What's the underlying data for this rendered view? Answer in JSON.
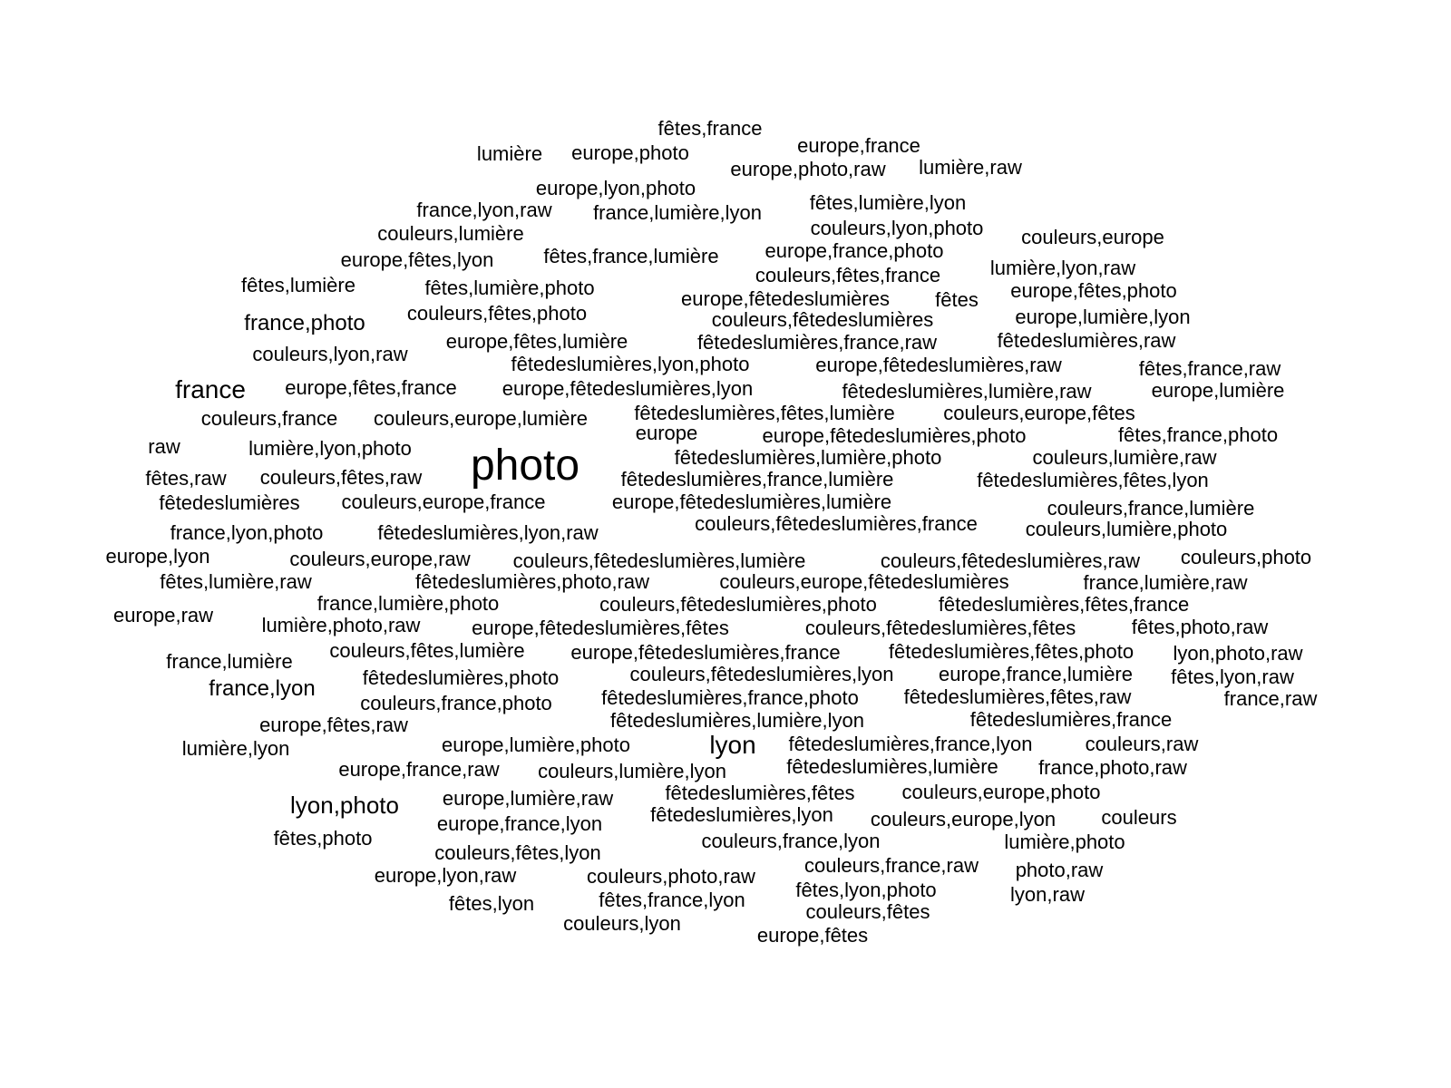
{
  "words": [
    {
      "text": "photo",
      "weight": 48
    },
    {
      "text": "france",
      "weight": 28
    },
    {
      "text": "lyon",
      "weight": 28
    },
    {
      "text": "lyon,photo",
      "weight": 26
    },
    {
      "text": "france,photo",
      "weight": 24
    },
    {
      "text": "france,lyon",
      "weight": 24
    },
    {
      "text": "fêtes,france",
      "weight": 22
    },
    {
      "text": "lumière",
      "weight": 22
    },
    {
      "text": "europe,photo",
      "weight": 22
    },
    {
      "text": "europe,france",
      "weight": 22
    },
    {
      "text": "europe,photo,raw",
      "weight": 22
    },
    {
      "text": "lumière,raw",
      "weight": 22
    },
    {
      "text": "europe,lyon,photo",
      "weight": 22
    },
    {
      "text": "france,lyon,raw",
      "weight": 22
    },
    {
      "text": "france,lumière,lyon",
      "weight": 22
    },
    {
      "text": "fêtes,lumière,lyon",
      "weight": 22
    },
    {
      "text": "couleurs,lumière",
      "weight": 22
    },
    {
      "text": "couleurs,lyon,photo",
      "weight": 22
    },
    {
      "text": "couleurs,europe",
      "weight": 22
    },
    {
      "text": "europe,fêtes,lyon",
      "weight": 22
    },
    {
      "text": "fêtes,france,lumière",
      "weight": 22
    },
    {
      "text": "europe,france,photo",
      "weight": 22
    },
    {
      "text": "lumière,lyon,raw",
      "weight": 22
    },
    {
      "text": "fêtes,lumière",
      "weight": 22
    },
    {
      "text": "couleurs,fêtes,france",
      "weight": 22
    },
    {
      "text": "fêtes,lumière,photo",
      "weight": 22
    },
    {
      "text": "europe,fêtedeslumières",
      "weight": 22
    },
    {
      "text": "fêtes",
      "weight": 22
    },
    {
      "text": "europe,fêtes,photo",
      "weight": 22
    },
    {
      "text": "couleurs,fêtes,photo",
      "weight": 22
    },
    {
      "text": "couleurs,fêtedeslumières",
      "weight": 22
    },
    {
      "text": "europe,lumière,lyon",
      "weight": 22
    },
    {
      "text": "europe,fêtes,lumière",
      "weight": 22
    },
    {
      "text": "fêtedeslumières,france,raw",
      "weight": 22
    },
    {
      "text": "fêtedeslumières,raw",
      "weight": 22
    },
    {
      "text": "couleurs,lyon,raw",
      "weight": 22
    },
    {
      "text": "fêtedeslumières,lyon,photo",
      "weight": 22
    },
    {
      "text": "europe,fêtedeslumières,raw",
      "weight": 22
    },
    {
      "text": "fêtes,france,raw",
      "weight": 22
    },
    {
      "text": "europe,fêtes,france",
      "weight": 22
    },
    {
      "text": "europe,fêtedeslumières,lyon",
      "weight": 22
    },
    {
      "text": "fêtedeslumières,lumière,raw",
      "weight": 22
    },
    {
      "text": "europe,lumière",
      "weight": 22
    },
    {
      "text": "fêtedeslumières,fêtes,lumière",
      "weight": 22
    },
    {
      "text": "couleurs,europe,fêtes",
      "weight": 22
    },
    {
      "text": "couleurs,france",
      "weight": 22
    },
    {
      "text": "couleurs,europe,lumière",
      "weight": 22
    },
    {
      "text": "europe",
      "weight": 22
    },
    {
      "text": "europe,fêtedeslumières,photo",
      "weight": 22
    },
    {
      "text": "fêtes,france,photo",
      "weight": 22
    },
    {
      "text": "raw",
      "weight": 22
    },
    {
      "text": "lumière,lyon,photo",
      "weight": 22
    },
    {
      "text": "fêtedeslumières,lumière,photo",
      "weight": 22
    },
    {
      "text": "couleurs,lumière,raw",
      "weight": 22
    },
    {
      "text": "fêtes,raw",
      "weight": 22
    },
    {
      "text": "couleurs,fêtes,raw",
      "weight": 22
    },
    {
      "text": "fêtedeslumières,france,lumière",
      "weight": 22
    },
    {
      "text": "fêtedeslumières,fêtes,lyon",
      "weight": 22
    },
    {
      "text": "fêtedeslumières",
      "weight": 22
    },
    {
      "text": "couleurs,europe,france",
      "weight": 22
    },
    {
      "text": "europe,fêtedeslumières,lumière",
      "weight": 22
    },
    {
      "text": "couleurs,france,lumière",
      "weight": 22
    },
    {
      "text": "couleurs,fêtedeslumières,france",
      "weight": 22
    },
    {
      "text": "france,lyon,photo",
      "weight": 22
    },
    {
      "text": "fêtedeslumières,lyon,raw",
      "weight": 22
    },
    {
      "text": "couleurs,lumière,photo",
      "weight": 22
    },
    {
      "text": "europe,lyon",
      "weight": 22
    },
    {
      "text": "couleurs,europe,raw",
      "weight": 22
    },
    {
      "text": "couleurs,fêtedeslumières,lumière",
      "weight": 22
    },
    {
      "text": "couleurs,fêtedeslumières,raw",
      "weight": 22
    },
    {
      "text": "couleurs,photo",
      "weight": 22
    },
    {
      "text": "fêtes,lumière,raw",
      "weight": 22
    },
    {
      "text": "fêtedeslumières,photo,raw",
      "weight": 22
    },
    {
      "text": "couleurs,europe,fêtedeslumières",
      "weight": 22
    },
    {
      "text": "france,lumière,raw",
      "weight": 22
    },
    {
      "text": "france,lumière,photo",
      "weight": 22
    },
    {
      "text": "couleurs,fêtedeslumières,photo",
      "weight": 22
    },
    {
      "text": "fêtedeslumières,fêtes,france",
      "weight": 22
    },
    {
      "text": "europe,raw",
      "weight": 22
    },
    {
      "text": "lumière,photo,raw",
      "weight": 22
    },
    {
      "text": "europe,fêtedeslumières,fêtes",
      "weight": 22
    },
    {
      "text": "couleurs,fêtedeslumières,fêtes",
      "weight": 22
    },
    {
      "text": "fêtes,photo,raw",
      "weight": 22
    },
    {
      "text": "france,lumière",
      "weight": 22
    },
    {
      "text": "couleurs,fêtes,lumière",
      "weight": 22
    },
    {
      "text": "europe,fêtedeslumières,france",
      "weight": 22
    },
    {
      "text": "fêtedeslumières,fêtes,photo",
      "weight": 22
    },
    {
      "text": "lyon,photo,raw",
      "weight": 22
    },
    {
      "text": "fêtedeslumières,photo",
      "weight": 22
    },
    {
      "text": "couleurs,fêtedeslumières,lyon",
      "weight": 22
    },
    {
      "text": "europe,france,lumière",
      "weight": 22
    },
    {
      "text": "fêtes,lyon,raw",
      "weight": 22
    },
    {
      "text": "couleurs,france,photo",
      "weight": 22
    },
    {
      "text": "fêtedeslumières,france,photo",
      "weight": 22
    },
    {
      "text": "fêtedeslumières,fêtes,raw",
      "weight": 22
    },
    {
      "text": "france,raw",
      "weight": 22
    },
    {
      "text": "europe,fêtes,raw",
      "weight": 22
    },
    {
      "text": "fêtedeslumières,lumière,lyon",
      "weight": 22
    },
    {
      "text": "fêtedeslumières,france",
      "weight": 22
    },
    {
      "text": "lumière,lyon",
      "weight": 22
    },
    {
      "text": "europe,lumière,photo",
      "weight": 22
    },
    {
      "text": "fêtedeslumières,france,lyon",
      "weight": 22
    },
    {
      "text": "couleurs,raw",
      "weight": 22
    },
    {
      "text": "europe,france,raw",
      "weight": 22
    },
    {
      "text": "couleurs,lumière,lyon",
      "weight": 22
    },
    {
      "text": "fêtedeslumières,lumière",
      "weight": 22
    },
    {
      "text": "france,photo,raw",
      "weight": 22
    },
    {
      "text": "europe,lumière,raw",
      "weight": 22
    },
    {
      "text": "fêtedeslumières,fêtes",
      "weight": 22
    },
    {
      "text": "couleurs,europe,photo",
      "weight": 22
    },
    {
      "text": "europe,france,lyon",
      "weight": 22
    },
    {
      "text": "fêtedeslumières,lyon",
      "weight": 22
    },
    {
      "text": "couleurs,europe,lyon",
      "weight": 22
    },
    {
      "text": "couleurs",
      "weight": 22
    },
    {
      "text": "fêtes,photo",
      "weight": 22
    },
    {
      "text": "couleurs,france,lyon",
      "weight": 22
    },
    {
      "text": "lumière,photo",
      "weight": 22
    },
    {
      "text": "couleurs,fêtes,lyon",
      "weight": 22
    },
    {
      "text": "couleurs,france,raw",
      "weight": 22
    },
    {
      "text": "europe,lyon,raw",
      "weight": 22
    },
    {
      "text": "couleurs,photo,raw",
      "weight": 22
    },
    {
      "text": "photo,raw",
      "weight": 22
    },
    {
      "text": "fêtes,lyon,photo",
      "weight": 22
    },
    {
      "text": "lyon,raw",
      "weight": 22
    },
    {
      "text": "fêtes,lyon",
      "weight": 22
    },
    {
      "text": "fêtes,france,lyon",
      "weight": 22
    },
    {
      "text": "couleurs,fêtes",
      "weight": 22
    },
    {
      "text": "couleurs,lyon",
      "weight": 22
    },
    {
      "text": "europe,fêtes",
      "weight": 22
    }
  ]
}
